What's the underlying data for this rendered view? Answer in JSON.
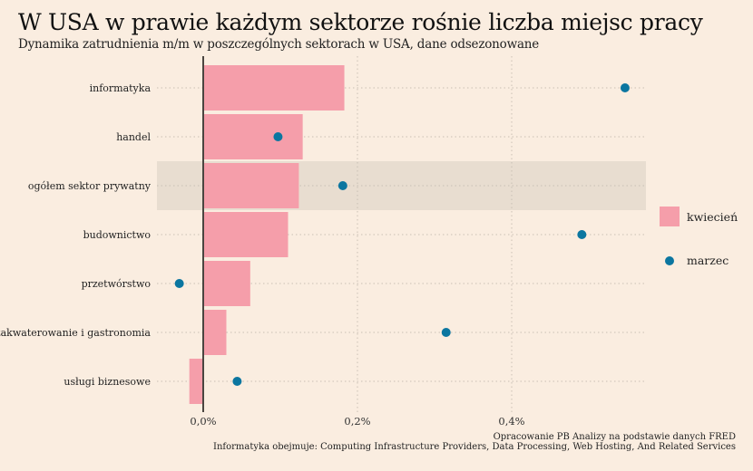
{
  "title": "W USA w prawie każdym sektorze rośnie liczba miejsc pracy",
  "subtitle": "Dynamika zatrudnienia m/m w poszczególnych sektorach w USA, dane odsezonowane",
  "caption_source": "Opracowanie PB Analizy na podstawie danych FRED",
  "caption_note": "Informatyka obejmuje: Computing Infrastructure Providers, Data Processing, Web Hosting, And Related Services",
  "colors": {
    "background": "#faede0",
    "bar": "#f59eaa",
    "dot": "#0b76a0",
    "highlight": "#e8ddd0",
    "zero_line": "#4a4540",
    "grid": "#c9bfb3"
  },
  "chart_data": {
    "type": "bar",
    "orientation": "horizontal",
    "categories": [
      "informatyka",
      "handel",
      "ogółem sektor prywatny",
      "budownictwo",
      "przetwórstwo",
      "zakwaterowanie i gastronomia",
      "usługi biznesowe"
    ],
    "highlighted_category": "ogółem sektor prywatny",
    "series": [
      {
        "name": "kwiecień",
        "mark": "bar",
        "values": [
          0.183,
          0.129,
          0.124,
          0.11,
          0.061,
          0.03,
          -0.018
        ]
      },
      {
        "name": "marzec",
        "mark": "dot",
        "values": [
          0.547,
          0.097,
          0.181,
          0.491,
          -0.031,
          0.315,
          0.044
        ]
      }
    ],
    "x_ticks": [
      0,
      0.2,
      0.4
    ],
    "x_tick_labels": [
      "0,0%",
      "0,2%",
      "0,4%"
    ],
    "xlim": [
      -0.06,
      0.576
    ],
    "grid": true,
    "legend_position": "right"
  }
}
